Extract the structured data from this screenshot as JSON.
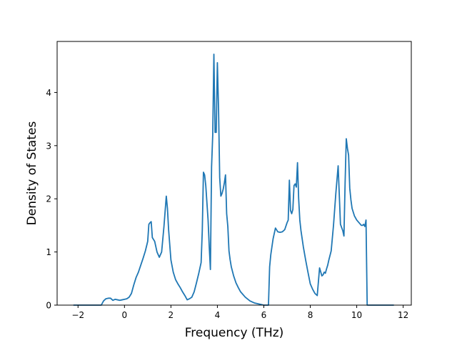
{
  "chart_data": {
    "type": "line",
    "title": "",
    "xlabel": "Frequency (THz)",
    "ylabel": "Density of States",
    "xlim": [
      -2.9,
      12.35
    ],
    "ylim": [
      0,
      4.96
    ],
    "xticks": [
      -2,
      0,
      2,
      4,
      6,
      8,
      10,
      12
    ],
    "yticks": [
      0,
      1,
      2,
      3,
      4
    ],
    "grid": false,
    "legend": "none",
    "colors": {
      "line": "#1f77b4",
      "axes": "#000000",
      "background": "#ffffff"
    },
    "series": [
      {
        "x": [
          -2.2,
          -1.0,
          -0.9,
          -0.8,
          -0.7,
          -0.6,
          -0.5,
          -0.4,
          -0.3,
          -0.2,
          -0.1,
          0.0,
          0.1,
          0.2,
          0.3,
          0.4,
          0.5,
          0.6,
          0.7,
          0.8,
          0.9,
          1.0,
          1.05,
          1.1,
          1.15,
          1.2,
          1.3,
          1.4,
          1.5,
          1.6,
          1.7,
          1.8,
          1.85,
          1.9,
          2.0,
          2.1,
          2.2,
          2.3,
          2.4,
          2.5,
          2.6,
          2.7,
          2.8,
          2.9,
          3.0,
          3.1,
          3.2,
          3.3,
          3.35,
          3.4,
          3.45,
          3.5,
          3.6,
          3.65,
          3.7,
          3.75,
          3.8,
          3.85,
          3.9,
          3.95,
          4.0,
          4.05,
          4.1,
          4.15,
          4.2,
          4.25,
          4.3,
          4.35,
          4.4,
          4.45,
          4.5,
          4.55,
          4.6,
          4.7,
          4.8,
          4.9,
          5.0,
          5.2,
          5.4,
          5.6,
          5.8,
          6.0,
          6.1,
          6.2,
          6.25,
          6.3,
          6.4,
          6.5,
          6.6,
          6.7,
          6.8,
          6.9,
          7.0,
          7.05,
          7.1,
          7.15,
          7.2,
          7.25,
          7.3,
          7.35,
          7.4,
          7.45,
          7.5,
          7.55,
          7.6,
          7.7,
          7.8,
          7.9,
          8.0,
          8.1,
          8.2,
          8.3,
          8.4,
          8.5,
          8.55,
          8.6,
          8.65,
          8.7,
          8.75,
          8.8,
          8.9,
          9.0,
          9.1,
          9.2,
          9.3,
          9.4,
          9.45,
          9.5,
          9.55,
          9.6,
          9.65,
          9.7,
          9.75,
          9.8,
          9.9,
          10.0,
          10.1,
          10.2,
          10.25,
          10.3,
          10.35,
          10.4,
          10.45,
          10.5,
          11.0,
          11.6
        ],
        "y": [
          0.0,
          0.0,
          0.08,
          0.12,
          0.13,
          0.13,
          0.09,
          0.11,
          0.1,
          0.09,
          0.1,
          0.11,
          0.12,
          0.15,
          0.22,
          0.38,
          0.52,
          0.62,
          0.75,
          0.88,
          1.02,
          1.2,
          1.52,
          1.55,
          1.57,
          1.27,
          1.2,
          1.0,
          0.9,
          1.0,
          1.48,
          2.05,
          1.82,
          1.42,
          0.85,
          0.62,
          0.48,
          0.4,
          0.33,
          0.25,
          0.18,
          0.1,
          0.12,
          0.15,
          0.25,
          0.42,
          0.6,
          0.8,
          1.4,
          2.5,
          2.45,
          2.25,
          1.6,
          1.1,
          0.67,
          2.6,
          3.2,
          4.72,
          3.25,
          3.25,
          4.56,
          3.7,
          2.4,
          2.05,
          2.1,
          2.18,
          2.3,
          2.45,
          1.72,
          1.48,
          1.02,
          0.85,
          0.72,
          0.55,
          0.42,
          0.33,
          0.25,
          0.15,
          0.08,
          0.04,
          0.02,
          0.0,
          0.0,
          0.0,
          0.72,
          0.95,
          1.25,
          1.45,
          1.38,
          1.37,
          1.38,
          1.42,
          1.55,
          1.6,
          2.35,
          1.78,
          1.72,
          1.8,
          2.25,
          2.28,
          2.22,
          2.68,
          2.0,
          1.6,
          1.4,
          1.1,
          0.85,
          0.62,
          0.4,
          0.3,
          0.22,
          0.18,
          0.7,
          0.55,
          0.57,
          0.62,
          0.6,
          0.68,
          0.75,
          0.85,
          1.02,
          1.5,
          2.1,
          2.62,
          1.52,
          1.4,
          1.3,
          2.3,
          3.13,
          2.95,
          2.82,
          2.2,
          1.98,
          1.82,
          1.68,
          1.6,
          1.55,
          1.5,
          1.5,
          1.52,
          1.48,
          1.6,
          0.0,
          0.0,
          0.0,
          0.0
        ]
      }
    ]
  }
}
